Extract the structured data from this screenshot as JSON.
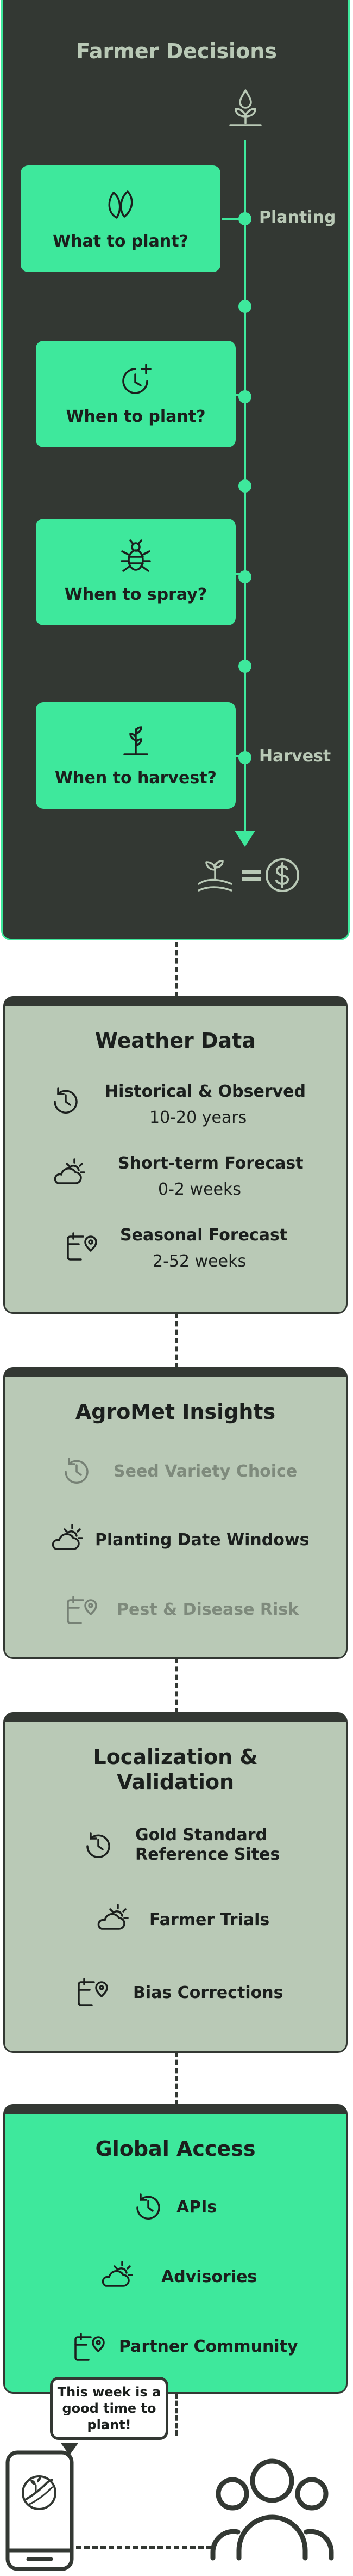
{
  "decisions": {
    "title": "Farmer Decisions",
    "stages": {
      "start": "Planting",
      "end": "Harvest"
    },
    "items": [
      {
        "label": "What to plant?",
        "icon": "seed-icon"
      },
      {
        "label": "When to plant?",
        "icon": "clock-plus-icon"
      },
      {
        "label": "When to spray?",
        "icon": "bug-icon"
      },
      {
        "label": "When to harvest?",
        "icon": "crop-icon"
      }
    ],
    "top_icon": "seedling-drop-icon",
    "result": {
      "left_icon": "sprout-field-icon",
      "symbol": "=",
      "right_icon": "dollar-coin-icon"
    }
  },
  "weather": {
    "title": "Weather Data",
    "rows": [
      {
        "label": "Historical & Observed",
        "sub": "10-20 years",
        "icon": "history-icon"
      },
      {
        "label": "Short-term Forecast",
        "sub": "0-2 weeks",
        "icon": "cloud-sun-icon"
      },
      {
        "label": "Seasonal Forecast",
        "sub": "2-52 weeks",
        "icon": "calendar-pin-icon"
      }
    ]
  },
  "agromet": {
    "title": "AgroMet Insights",
    "rows": [
      {
        "label": "Seed Variety Choice",
        "icon": "history-icon",
        "muted": true
      },
      {
        "label": "Planting Date Windows",
        "icon": "cloud-sun-icon",
        "muted": false
      },
      {
        "label": "Pest & Disease Risk",
        "icon": "calendar-pin-icon",
        "muted": true
      }
    ]
  },
  "localization": {
    "title_line1": "Localization &",
    "title_line2": "Validation",
    "rows": [
      {
        "line1": "Gold Standard",
        "line2": "Reference Sites",
        "icon": "history-icon"
      },
      {
        "line1": "Farmer Trials",
        "icon": "cloud-sun-icon"
      },
      {
        "line1": "Bias Corrections",
        "icon": "calendar-pin-icon"
      }
    ]
  },
  "global": {
    "title": "Global Access",
    "rows": [
      {
        "label": "APIs",
        "icon": "history-icon"
      },
      {
        "label": "Advisories",
        "icon": "cloud-sun-icon"
      },
      {
        "label": "Partner Community",
        "icon": "calendar-pin-icon"
      }
    ]
  },
  "bottom": {
    "bubble_lines": [
      "This week is a",
      "good time to",
      "plant!"
    ],
    "phone_icon": "phone-app-icon",
    "people_icon": "community-icon"
  },
  "colors": {
    "dark": "#333833",
    "green": "#3ee89c",
    "sage": "#b9c9b6",
    "muted": "#7e8a7c"
  }
}
